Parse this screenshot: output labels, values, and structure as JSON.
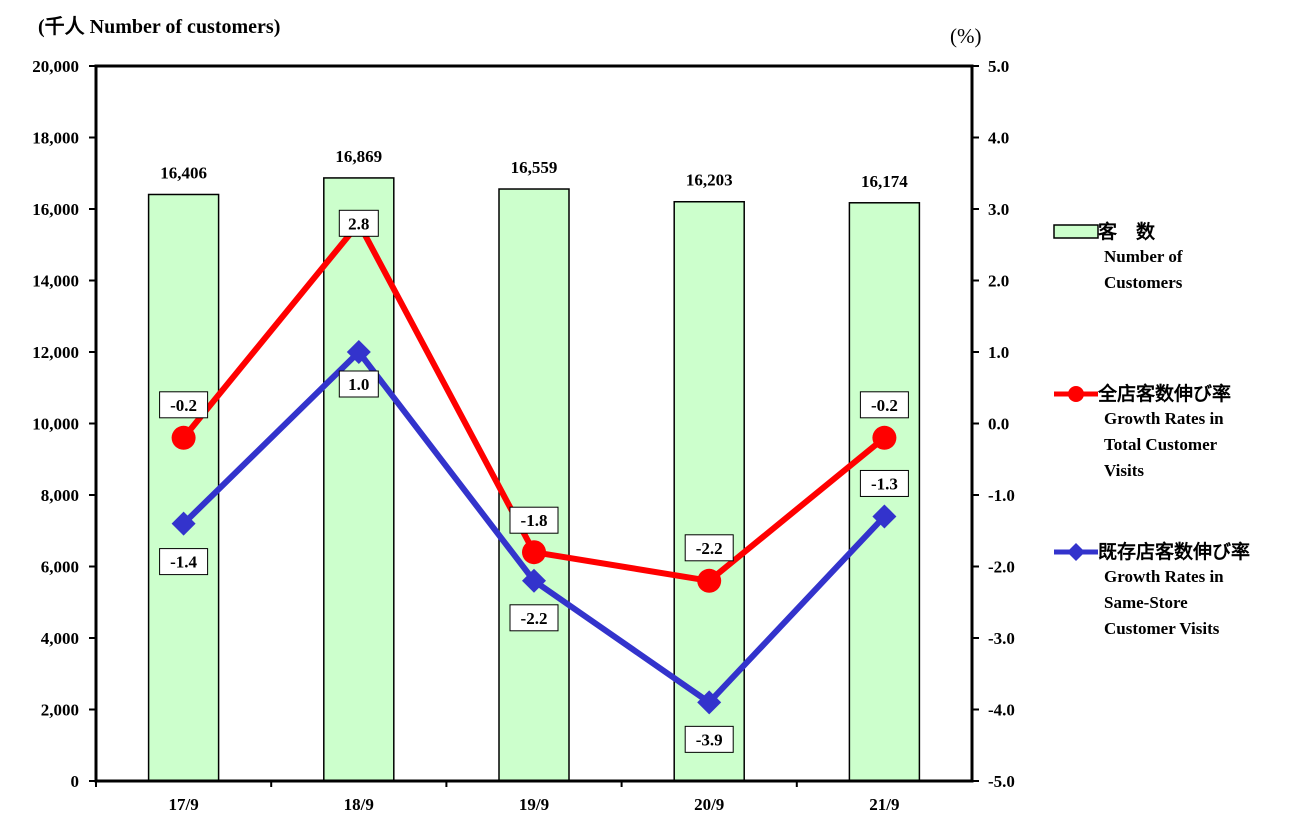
{
  "left_axis_title": "(千人  Number of customers)",
  "right_axis_title": "(%)",
  "chart_data": {
    "type": "bar+line",
    "categories": [
      "17/9",
      "18/9",
      "19/9",
      "20/9",
      "21/9"
    ],
    "left_axis": {
      "ylim": [
        0,
        20000
      ],
      "ticks": [
        "0",
        "2,000",
        "4,000",
        "6,000",
        "8,000",
        "10,000",
        "12,000",
        "14,000",
        "16,000",
        "18,000",
        "20,000"
      ]
    },
    "right_axis": {
      "ylim": [
        -5.0,
        5.0
      ],
      "ticks": [
        "-5.0",
        "-4.0",
        "-3.0",
        "-2.0",
        "-1.0",
        "0.0",
        "1.0",
        "2.0",
        "3.0",
        "4.0",
        "5.0"
      ]
    },
    "bars": {
      "values": [
        16406,
        16869,
        16559,
        16203,
        16174
      ],
      "labels": [
        "16,406",
        "16,869",
        "16,559",
        "16,203",
        "16,174"
      ],
      "color": "#ccffcc"
    },
    "series": [
      {
        "name": "全店客数伸び率",
        "values": [
          -0.2,
          2.8,
          -1.8,
          -2.2,
          -0.2
        ],
        "labels": [
          "-0.2",
          "2.8",
          "-1.8",
          "-2.2",
          "-0.2"
        ],
        "color": "#ff0000",
        "marker": "circle"
      },
      {
        "name": "既存店客数伸び率",
        "values": [
          -1.4,
          1.0,
          -2.2,
          -3.9,
          -1.3
        ],
        "labels": [
          "-1.4",
          "1.0",
          "-2.2",
          "-3.9",
          "-1.3"
        ],
        "color": "#3333cc",
        "marker": "diamond"
      }
    ]
  },
  "legend": {
    "bars": {
      "jp": "客　数",
      "en": [
        "Number of",
        "Customers"
      ]
    },
    "total": {
      "jp": "全店客数伸び率",
      "en": [
        "Growth Rates in",
        "Total Customer",
        "Visits"
      ]
    },
    "same": {
      "jp": "既存店客数伸び率",
      "en": [
        "Growth Rates in",
        "Same-Store",
        "Customer Visits"
      ]
    }
  }
}
